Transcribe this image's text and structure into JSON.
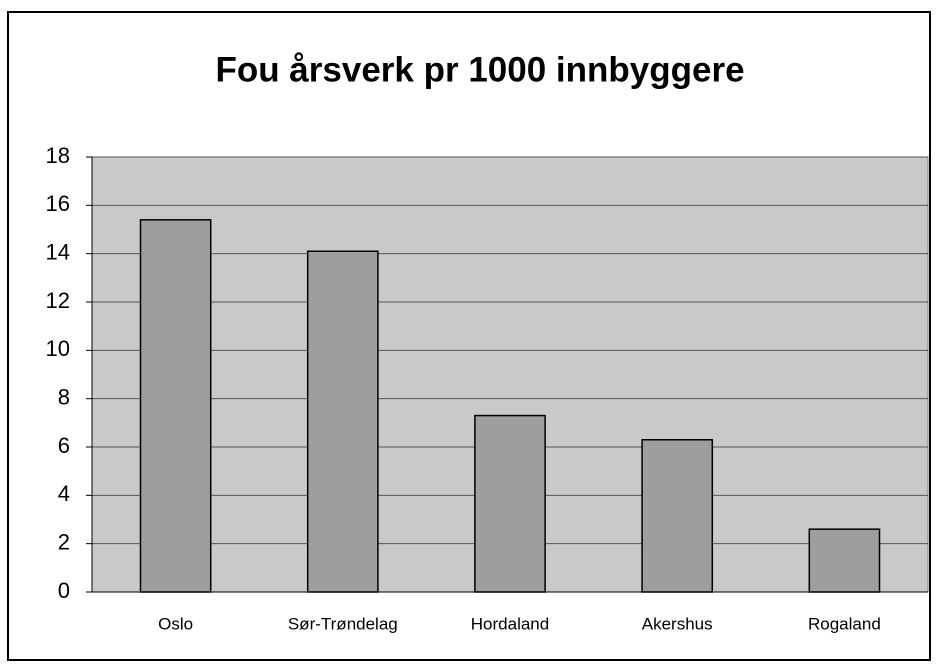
{
  "chart_data": {
    "type": "bar",
    "title": "Fou årsverk pr 1000 innbyggere",
    "categories": [
      "Oslo",
      "Sør-Trøndelag",
      "Hordaland",
      "Akershus",
      "Rogaland"
    ],
    "values": [
      15.4,
      14.1,
      7.3,
      6.3,
      2.6
    ],
    "color": "#9e9e9e",
    "ylim": [
      0,
      18
    ],
    "yticks": [
      0,
      2,
      4,
      6,
      8,
      10,
      12,
      14,
      16,
      18
    ],
    "grid": true
  }
}
